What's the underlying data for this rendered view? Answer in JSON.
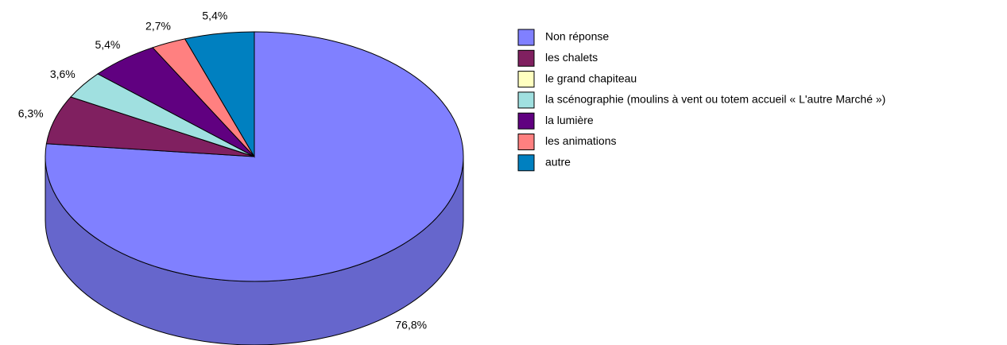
{
  "chart_data": {
    "type": "pie3d",
    "categories": [
      "Non réponse",
      "les chalets",
      "le grand chapiteau",
      "la scénographie (moulins à vent ou totem accueil « L'autre Marché »)",
      "la lumière",
      "les animations",
      "autre"
    ],
    "values": [
      76.8,
      6.3,
      0,
      3.6,
      5.4,
      2.7,
      5.4
    ],
    "value_labels": [
      "76,8%",
      "6,3%",
      null,
      "3,6%",
      "5,4%",
      "2,7%",
      "5,4%"
    ],
    "colors": [
      "#8080ff",
      "#802060",
      "#ffffc0",
      "#a0e0e0",
      "#600080",
      "#ff8080",
      "#0080c0"
    ],
    "legend": "right"
  }
}
